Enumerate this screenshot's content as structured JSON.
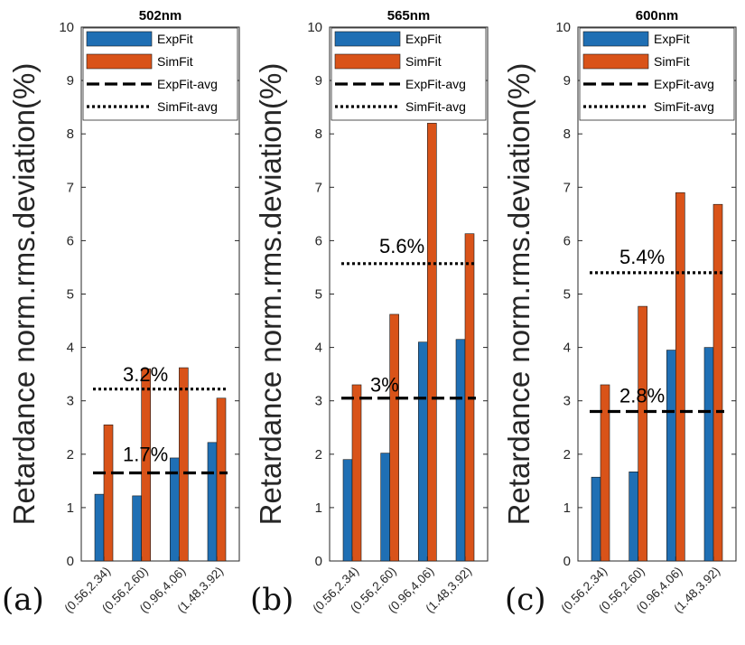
{
  "figure": {
    "ylabel": "Retardance norm.rms.deviation(%)",
    "panel_labels": [
      "(a)",
      "(b)",
      "(c)"
    ]
  },
  "colors": {
    "ExpFit": "#1f6fb4",
    "SimFit": "#d95319",
    "avg_line": "#000000"
  },
  "chart_data": [
    {
      "type": "bar",
      "title": "502nm",
      "categories": [
        "(0.56,2.34)",
        "(0.56,2.60)",
        "(0.96,4.06)",
        "(1.48,3.92)"
      ],
      "series": [
        {
          "name": "ExpFit",
          "values": [
            1.25,
            1.22,
            1.93,
            2.22
          ]
        },
        {
          "name": "SimFit",
          "values": [
            2.55,
            3.6,
            3.62,
            3.05
          ]
        }
      ],
      "averages": [
        {
          "name": "ExpFit-avg",
          "value": 1.65,
          "style": "dashed",
          "label": "1.7%"
        },
        {
          "name": "SimFit-avg",
          "value": 3.22,
          "style": "dotted",
          "label": "3.2%"
        }
      ],
      "ylim": [
        0,
        10
      ],
      "yticks": [
        0,
        1,
        2,
        3,
        4,
        5,
        6,
        7,
        8,
        9,
        10
      ],
      "legend_position": "top-right"
    },
    {
      "type": "bar",
      "title": "565nm",
      "categories": [
        "(0.56,2.34)",
        "(0.56,2.60)",
        "(0.96,4.06)",
        "(1.48,3.92)"
      ],
      "series": [
        {
          "name": "ExpFit",
          "values": [
            1.9,
            2.02,
            4.1,
            4.15
          ]
        },
        {
          "name": "SimFit",
          "values": [
            3.3,
            4.62,
            8.2,
            6.13
          ]
        }
      ],
      "averages": [
        {
          "name": "ExpFit-avg",
          "value": 3.05,
          "style": "dashed",
          "label": "3%"
        },
        {
          "name": "SimFit-avg",
          "value": 5.57,
          "style": "dotted",
          "label": "5.6%"
        }
      ],
      "ylim": [
        0,
        10
      ],
      "yticks": [
        0,
        1,
        2,
        3,
        4,
        5,
        6,
        7,
        8,
        9,
        10
      ],
      "legend_position": "top-right"
    },
    {
      "type": "bar",
      "title": "600nm",
      "categories": [
        "(0.56,2.34)",
        "(0.56,2.60)",
        "(0.96,4.06)",
        "(1.48,3.92)"
      ],
      "series": [
        {
          "name": "ExpFit",
          "values": [
            1.57,
            1.67,
            3.95,
            4.0
          ]
        },
        {
          "name": "SimFit",
          "values": [
            3.3,
            4.77,
            6.9,
            6.68
          ]
        }
      ],
      "averages": [
        {
          "name": "ExpFit-avg",
          "value": 2.8,
          "style": "dashed",
          "label": "2.8%"
        },
        {
          "name": "SimFit-avg",
          "value": 5.4,
          "style": "dotted",
          "label": "5.4%"
        }
      ],
      "ylim": [
        0,
        10
      ],
      "yticks": [
        0,
        1,
        2,
        3,
        4,
        5,
        6,
        7,
        8,
        9,
        10
      ],
      "legend_position": "top-right"
    }
  ]
}
